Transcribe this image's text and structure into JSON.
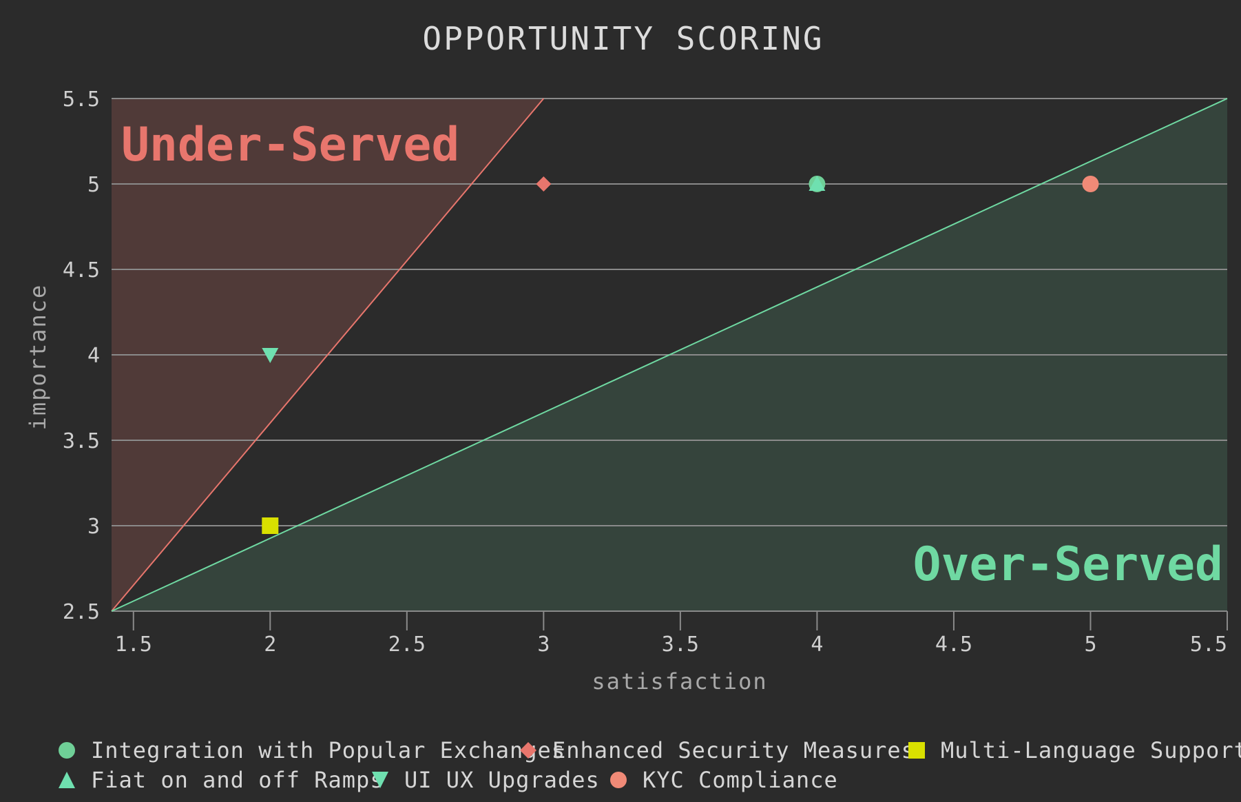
{
  "chart_data": {
    "type": "scatter",
    "title": "OPPORTUNITY SCORING",
    "xlabel": "satisfaction",
    "ylabel": "importance",
    "xlim": [
      1.42,
      5.5
    ],
    "ylim": [
      2.5,
      5.5
    ],
    "xticks": [
      "1.5",
      "2",
      "2.5",
      "3",
      "3.5",
      "4",
      "4.5",
      "5",
      "5.5"
    ],
    "yticks": [
      "2.5",
      "3",
      "3.5",
      "4",
      "4.5",
      "5",
      "5.5"
    ],
    "grid": true,
    "legend_position": "bottom",
    "regions": [
      {
        "label": "Under-Served",
        "color": "#e8766d"
      },
      {
        "label": "Over-Served",
        "color": "#6fd9a2"
      }
    ],
    "series": [
      {
        "name": "Integration with Popular Exchanges",
        "marker": "circle",
        "color": "#6fcf97",
        "x": [
          4
        ],
        "y": [
          5
        ]
      },
      {
        "name": "Enhanced Security Measures",
        "marker": "diamond",
        "color": "#e8766d",
        "x": [
          3
        ],
        "y": [
          5
        ]
      },
      {
        "name": "Multi-Language Support",
        "marker": "square",
        "color": "#d9e000",
        "x": [
          2
        ],
        "y": [
          3
        ]
      },
      {
        "name": "Fiat on and off Ramps",
        "marker": "triangle-up",
        "color": "#6fe0b0",
        "x": [
          4
        ],
        "y": [
          5
        ]
      },
      {
        "name": "UI UX Upgrades",
        "marker": "triangle-down",
        "color": "#6fe0b0",
        "x": [
          2
        ],
        "y": [
          4
        ]
      },
      {
        "name": "KYC Compliance",
        "marker": "circle",
        "color": "#f08a77",
        "x": [
          5
        ],
        "y": [
          5
        ]
      }
    ]
  }
}
